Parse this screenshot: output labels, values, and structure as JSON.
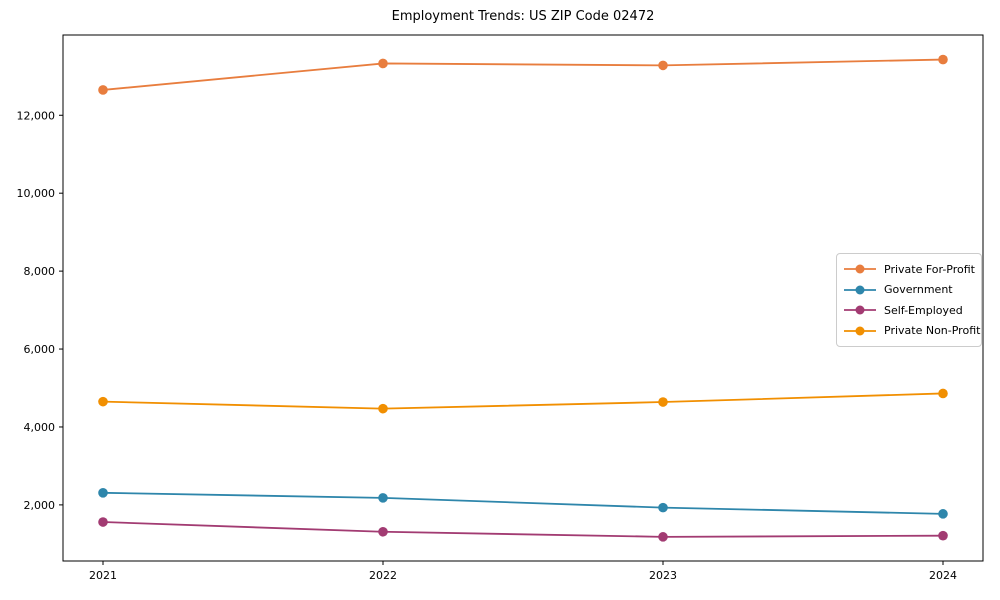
{
  "figure": {
    "background": "#ffffff"
  },
  "chart_data": {
    "type": "line",
    "title": "Employment Trends: US ZIP Code 02472",
    "categories": [
      "2021",
      "2022",
      "2023",
      "2024"
    ],
    "series": [
      {
        "name": "Private For-Profit",
        "color": "#e87d3e",
        "values": [
          12650,
          13330,
          13280,
          13430
        ]
      },
      {
        "name": "Government",
        "color": "#2e86ab",
        "values": [
          2310,
          2180,
          1930,
          1770
        ]
      },
      {
        "name": "Self-Employed",
        "color": "#a23b72",
        "values": [
          1560,
          1310,
          1180,
          1210
        ]
      },
      {
        "name": "Private Non-Profit",
        "color": "#f18f01",
        "values": [
          4650,
          4470,
          4640,
          4860
        ]
      }
    ],
    "xlabel": "",
    "ylabel": "",
    "ylim": [
      560,
      14060
    ],
    "yticks": [
      2000,
      4000,
      6000,
      8000,
      10000,
      12000
    ],
    "ytick_labels": [
      "2,000",
      "4,000",
      "6,000",
      "8,000",
      "10,000",
      "12,000"
    ],
    "grid": false,
    "legend_position": "center-right-inside",
    "marker": "circle"
  }
}
